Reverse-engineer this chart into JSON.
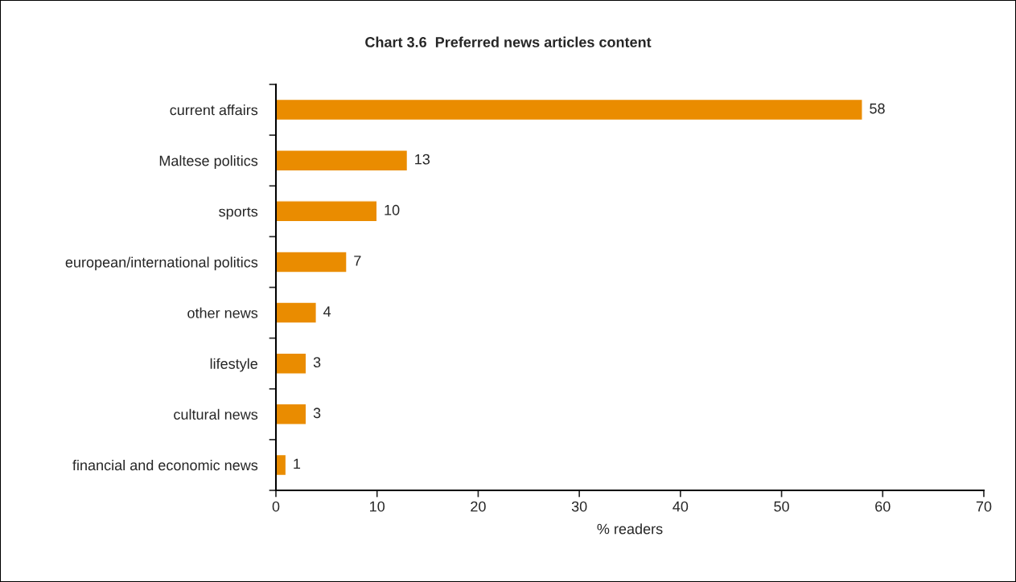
{
  "chart_data": {
    "type": "bar",
    "orientation": "horizontal",
    "title": "Chart 3.6  Preferred news articles content",
    "xlabel": "% readers",
    "categories": [
      "current affairs",
      "Maltese politics",
      "sports",
      "european/international politics",
      "other news",
      "lifestyle",
      "cultural news",
      "financial and economic news"
    ],
    "values": [
      58,
      13,
      10,
      7,
      4,
      3,
      3,
      1
    ],
    "color": "#ea8c00",
    "xlim": [
      0,
      70
    ],
    "xticks": [
      0,
      10,
      20,
      30,
      40,
      50,
      60,
      70
    ],
    "grid": false,
    "legend": false,
    "data_labels": true
  }
}
